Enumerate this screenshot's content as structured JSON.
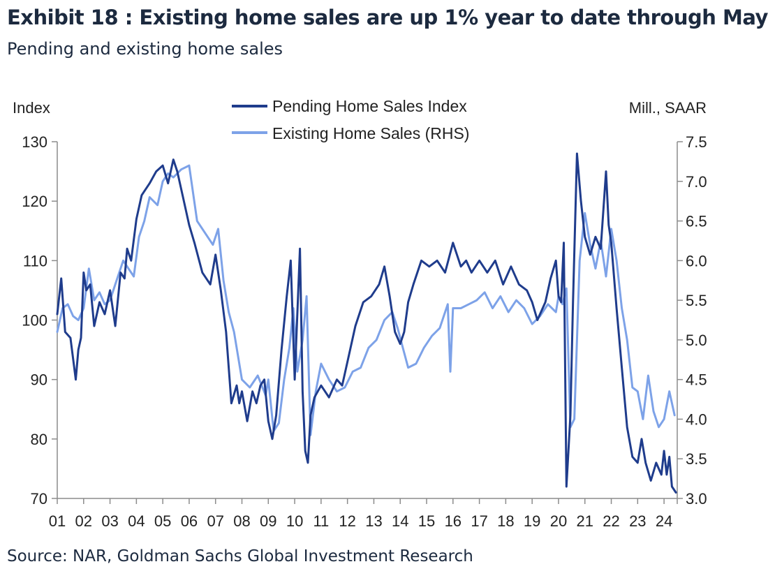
{
  "header": {
    "title": "Exhibit 18 : Existing home sales are up 1% year to date through May",
    "subtitle": "Pending and existing home sales"
  },
  "footer": {
    "source": "Source: NAR, Goldman Sachs Global Investment Research"
  },
  "colors": {
    "pending": "#1f3c8c",
    "existing": "#7da2e8",
    "axis": "#8c8c8c"
  },
  "chart_data": {
    "type": "line",
    "title": "Pending and existing home sales",
    "ylabel_left": "Index",
    "ylabel_right": "Mill., SAAR",
    "ylim_left": [
      70,
      130
    ],
    "ylim_right": [
      3.0,
      7.5
    ],
    "yticks_left": [
      "130",
      "120",
      "110",
      "100",
      "90",
      "80",
      "70"
    ],
    "yticks_right": [
      "7.5",
      "7.0",
      "6.5",
      "6.0",
      "5.5",
      "5.0",
      "4.5",
      "4.0",
      "3.5",
      "3.0"
    ],
    "x_labels": [
      "01",
      "02",
      "03",
      "04",
      "05",
      "06",
      "07",
      "08",
      "09",
      "10",
      "11",
      "12",
      "13",
      "14",
      "15",
      "16",
      "17",
      "18",
      "19",
      "20",
      "21",
      "22",
      "23",
      "24"
    ],
    "xlim": [
      2001.0,
      2024.5
    ],
    "legend": [
      "Pending Home Sales Index",
      "Existing Home Sales (RHS)"
    ],
    "series": [
      {
        "name": "Pending Home Sales Index",
        "axis": "left",
        "x": [
          2001.0,
          2001.15,
          2001.3,
          2001.5,
          2001.7,
          2001.8,
          2001.9,
          2002.0,
          2002.1,
          2002.25,
          2002.4,
          2002.6,
          2002.8,
          2003.0,
          2003.2,
          2003.4,
          2003.55,
          2003.65,
          2003.8,
          2004.0,
          2004.2,
          2004.5,
          2004.75,
          2005.0,
          2005.2,
          2005.4,
          2005.55,
          2005.75,
          2006.0,
          2006.2,
          2006.5,
          2006.8,
          2007.0,
          2007.2,
          2007.4,
          2007.6,
          2007.8,
          2007.9,
          2008.0,
          2008.2,
          2008.4,
          2008.55,
          2008.7,
          2008.85,
          2009.0,
          2009.15,
          2009.3,
          2009.5,
          2009.7,
          2009.85,
          2010.0,
          2010.2,
          2010.3,
          2010.4,
          2010.5,
          2010.6,
          2010.75,
          2011.0,
          2011.3,
          2011.6,
          2011.8,
          2012.0,
          2012.3,
          2012.6,
          2012.9,
          2013.2,
          2013.4,
          2013.6,
          2013.8,
          2014.0,
          2014.15,
          2014.3,
          2014.5,
          2014.8,
          2015.1,
          2015.4,
          2015.7,
          2016.0,
          2016.3,
          2016.5,
          2016.7,
          2017.0,
          2017.3,
          2017.6,
          2017.9,
          2018.2,
          2018.5,
          2018.8,
          2019.0,
          2019.2,
          2019.5,
          2019.7,
          2019.9,
          2020.0,
          2020.1,
          2020.2,
          2020.3,
          2020.45,
          2020.55,
          2020.7,
          2020.85,
          2021.0,
          2021.2,
          2021.4,
          2021.6,
          2021.8,
          2021.9,
          2022.0,
          2022.2,
          2022.4,
          2022.6,
          2022.8,
          2023.0,
          2023.15,
          2023.3,
          2023.5,
          2023.7,
          2023.9,
          2024.0,
          2024.1,
          2024.2,
          2024.3,
          2024.45
        ],
        "values": [
          101,
          107,
          98,
          97,
          90,
          95,
          97,
          108,
          105,
          106,
          99,
          103,
          101,
          105,
          99,
          108,
          107,
          112,
          110,
          117,
          121,
          123,
          125,
          126,
          123,
          127,
          125,
          121,
          116,
          113,
          108,
          106,
          111,
          105,
          98,
          86,
          89,
          86,
          88,
          83,
          88,
          86,
          89,
          90,
          83,
          80,
          84,
          95,
          104,
          110,
          90,
          112,
          88,
          78,
          76,
          84,
          87,
          89,
          87,
          90,
          89,
          93,
          99,
          103,
          104,
          106,
          109,
          104,
          98,
          96,
          98,
          103,
          106,
          110,
          109,
          110,
          108,
          113,
          109,
          110,
          108,
          110,
          108,
          110,
          106,
          109,
          106,
          105,
          103,
          100,
          103,
          107,
          110,
          104,
          103,
          113,
          72,
          84,
          103,
          128,
          120,
          114,
          111,
          114,
          112,
          125,
          116,
          113,
          102,
          92,
          82,
          77,
          76,
          80,
          76,
          73,
          76,
          74,
          78,
          74,
          77,
          72,
          71
        ]
      },
      {
        "name": "Existing Home Sales (RHS)",
        "axis": "right",
        "x": [
          2001.0,
          2001.2,
          2001.4,
          2001.6,
          2001.8,
          2002.0,
          2002.2,
          2002.4,
          2002.6,
          2002.8,
          2003.0,
          2003.2,
          2003.5,
          2003.7,
          2003.9,
          2004.1,
          2004.3,
          2004.5,
          2004.8,
          2005.0,
          2005.2,
          2005.4,
          2005.7,
          2006.0,
          2006.3,
          2006.6,
          2006.9,
          2007.1,
          2007.3,
          2007.5,
          2007.7,
          2008.0,
          2008.3,
          2008.6,
          2008.9,
          2009.0,
          2009.2,
          2009.4,
          2009.6,
          2009.8,
          2009.95,
          2010.1,
          2010.3,
          2010.45,
          2010.6,
          2010.8,
          2011.0,
          2011.3,
          2011.6,
          2011.9,
          2012.2,
          2012.5,
          2012.8,
          2013.1,
          2013.4,
          2013.7,
          2013.9,
          2014.1,
          2014.3,
          2014.6,
          2014.9,
          2015.2,
          2015.5,
          2015.8,
          2015.9,
          2016.0,
          2016.3,
          2016.6,
          2016.9,
          2017.2,
          2017.5,
          2017.8,
          2018.1,
          2018.4,
          2018.7,
          2019.0,
          2019.3,
          2019.6,
          2019.9,
          2020.0,
          2020.15,
          2020.3,
          2020.45,
          2020.6,
          2020.8,
          2021.0,
          2021.2,
          2021.4,
          2021.6,
          2021.8,
          2022.0,
          2022.2,
          2022.4,
          2022.6,
          2022.8,
          2023.0,
          2023.2,
          2023.4,
          2023.6,
          2023.8,
          2024.0,
          2024.2,
          2024.4
        ],
        "values": [
          5.1,
          5.4,
          5.45,
          5.3,
          5.25,
          5.4,
          5.9,
          5.5,
          5.6,
          5.45,
          5.5,
          5.7,
          6.0,
          5.9,
          5.8,
          6.3,
          6.5,
          6.8,
          6.7,
          7.0,
          7.1,
          7.05,
          7.15,
          7.2,
          6.5,
          6.35,
          6.2,
          6.4,
          5.75,
          5.35,
          5.1,
          4.5,
          4.4,
          4.55,
          4.3,
          4.5,
          3.85,
          3.95,
          4.5,
          4.9,
          5.4,
          4.6,
          5.0,
          5.55,
          3.8,
          4.35,
          4.7,
          4.5,
          4.35,
          4.4,
          4.6,
          4.65,
          4.9,
          5.0,
          5.25,
          5.35,
          5.15,
          4.9,
          4.65,
          4.7,
          4.9,
          5.05,
          5.15,
          5.45,
          4.6,
          5.4,
          5.4,
          5.45,
          5.5,
          5.6,
          5.4,
          5.55,
          5.35,
          5.5,
          5.4,
          5.2,
          5.3,
          5.45,
          5.35,
          5.55,
          5.45,
          5.65,
          3.9,
          4.0,
          6.0,
          6.6,
          6.2,
          5.9,
          6.25,
          5.8,
          6.4,
          6.0,
          5.4,
          5.0,
          4.4,
          4.35,
          4.0,
          4.55,
          4.1,
          3.9,
          4.0,
          4.35,
          4.05
        ]
      }
    ]
  }
}
